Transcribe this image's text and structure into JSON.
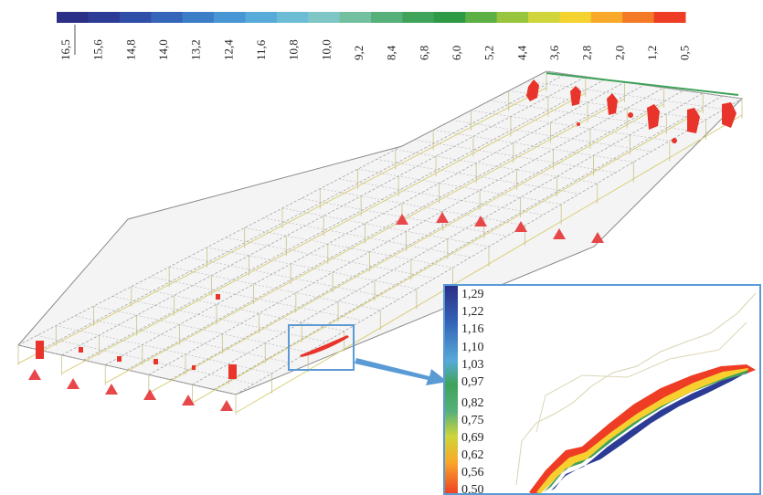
{
  "top_colorbar": {
    "tick_labels": [
      "16,5",
      "15,6",
      "14,8",
      "14,0",
      "13,2",
      "12,4",
      "11,6",
      "10,8",
      "10,0",
      "9,2",
      "8,4",
      "6,8",
      "6,0",
      "5,2",
      "4,4",
      "3,6",
      "2,8",
      "2,0",
      "1,2",
      "0,5"
    ],
    "colors": [
      "#2b2f86",
      "#2c3b95",
      "#2f4ea8",
      "#3565b8",
      "#3b7dc6",
      "#4896d3",
      "#57abd8",
      "#6cbcd6",
      "#7fc6c6",
      "#73c0a0",
      "#56b07a",
      "#3fa35a",
      "#2e9a46",
      "#5cb044",
      "#98c43e",
      "#cfd53a",
      "#f4d230",
      "#f9a92a",
      "#f47a26",
      "#ee3d24"
    ]
  },
  "inset": {
    "scale_labels": [
      "1,29",
      "1,22",
      "1,16",
      "1,10",
      "1,03",
      "0,97",
      "0,82",
      "0,75",
      "0,69",
      "0,62",
      "0,56",
      "0,50"
    ]
  },
  "colors": {
    "highlight_box": "#5b9bd5",
    "arrow": "#5b9bd5",
    "support": "#e8474a",
    "beam": "#d9cf7a",
    "mesh": "#9a9a9a"
  }
}
